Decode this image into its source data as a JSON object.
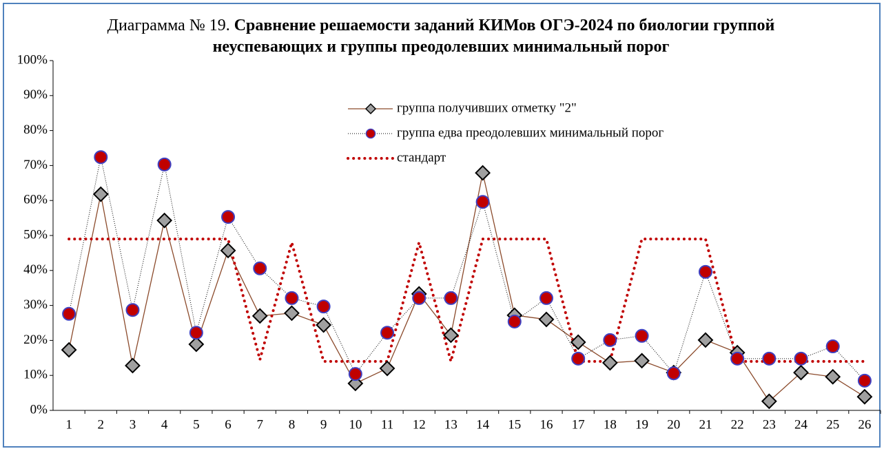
{
  "chart_data": {
    "type": "line",
    "title_label": "Диаграмма № 19.",
    "title": "Сравнение решаемости заданий КИМов ОГЭ-2024 по биологии группой неуспевающих и группы преодолевших минимальный порог",
    "categories": [
      "1",
      "2",
      "3",
      "4",
      "5",
      "6",
      "7",
      "8",
      "9",
      "10",
      "11",
      "12",
      "13",
      "14",
      "15",
      "16",
      "17",
      "18",
      "19",
      "20",
      "21",
      "22",
      "23",
      "24",
      "25",
      "26"
    ],
    "series": [
      {
        "name": "группа получивших отметку \"2\"",
        "color": "#8b4a2b",
        "marker": "diamond",
        "marker_fill": "#a0a0a0",
        "marker_stroke": "#000000",
        "values": [
          17.3,
          61.8,
          12.8,
          54.3,
          18.9,
          45.7,
          27,
          27.8,
          24.4,
          7.7,
          12,
          33.3,
          21.5,
          67.9,
          27.2,
          26,
          19.5,
          13.6,
          14.2,
          10.8,
          20.1,
          16.5,
          2.6,
          10.8,
          9.6,
          3.9
        ]
      },
      {
        "name": "группа едва преодолевших минимальный порог",
        "color": "#000000",
        "marker": "circle",
        "marker_fill": "#c00000",
        "marker_stroke": "#4040c0",
        "values": [
          27.6,
          72.4,
          28.7,
          70.3,
          22.2,
          55.3,
          40.6,
          32.1,
          29.7,
          10.4,
          22.2,
          32.1,
          32.1,
          59.6,
          25.4,
          32.1,
          14.8,
          20.1,
          21.3,
          10.6,
          39.6,
          14.8,
          14.8,
          14.8,
          18.3,
          8.5
        ]
      },
      {
        "name": "стандарт",
        "color": "#c00000",
        "marker": "none",
        "values": [
          49,
          49,
          49,
          49,
          49,
          49,
          14.5,
          48,
          14,
          14,
          14,
          48,
          14,
          49,
          49,
          49,
          14,
          14,
          49,
          49,
          49,
          14,
          14,
          14,
          14,
          14
        ]
      }
    ],
    "ylim": [
      0,
      100
    ],
    "yticks": [
      {
        "value": 0,
        "label": "0%"
      },
      {
        "value": 10,
        "label": "10%"
      },
      {
        "value": 20,
        "label": "20%"
      },
      {
        "value": 30,
        "label": "30%"
      },
      {
        "value": 40,
        "label": "40%"
      },
      {
        "value": 50,
        "label": "50%"
      },
      {
        "value": 60,
        "label": "60%"
      },
      {
        "value": 70,
        "label": "70%"
      },
      {
        "value": 80,
        "label": "80%"
      },
      {
        "value": 90,
        "label": "90%"
      },
      {
        "value": 100,
        "label": "100%"
      }
    ],
    "grid": false
  }
}
